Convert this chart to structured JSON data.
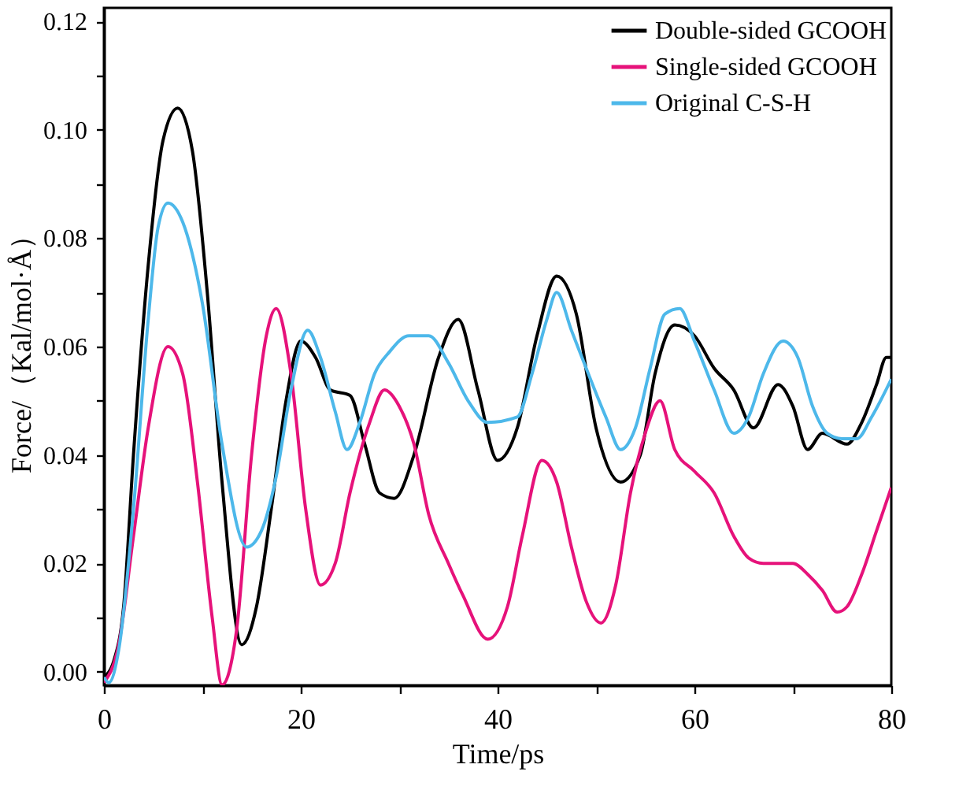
{
  "chart_data": {
    "type": "line",
    "xlabel": "Time/ps",
    "ylabel": "Force/（Kal/mol·Å）",
    "xlim": [
      0,
      80
    ],
    "xticks": [
      0,
      {
        "value": 10,
        "label": null
      },
      20,
      {
        "value": 30,
        "label": null
      },
      40,
      {
        "value": 50,
        "label": null
      },
      60,
      {
        "value": 70,
        "label": null
      },
      80
    ],
    "ylim": [
      -0.0025,
      0.1225
    ],
    "yticks": [
      {
        "value": 0,
        "label": "0.00"
      },
      {
        "value": 0.01,
        "label": null
      },
      {
        "value": 0.02,
        "label": "0.02"
      },
      {
        "value": 0.03,
        "label": null
      },
      {
        "value": 0.04,
        "label": "0.04"
      },
      {
        "value": 0.05,
        "label": null
      },
      {
        "value": 0.06,
        "label": "0.06"
      },
      {
        "value": 0.07,
        "label": null
      },
      {
        "value": 0.08,
        "label": "0.08"
      },
      {
        "value": 0.09,
        "label": null
      },
      {
        "value": 0.1,
        "label": "0.10"
      },
      {
        "value": 0.11,
        "label": null
      },
      {
        "value": 0.12,
        "label": "0.12"
      }
    ],
    "grid": false,
    "legend": "top right",
    "marker": "none",
    "line_style": "solid",
    "series": [
      {
        "name": "Double-sided GCOOH",
        "color": "#000000",
        "x": [
          0,
          1,
          2,
          3,
          4.5,
          6,
          7.5,
          9,
          10.5,
          12,
          14,
          15.5,
          17,
          18.5,
          20,
          21.5,
          23,
          25,
          26.5,
          28,
          29.5,
          31.5,
          34,
          36,
          38,
          40,
          42,
          44,
          46,
          48,
          50,
          52.5,
          54.5,
          56,
          58,
          60,
          62,
          64,
          66,
          68.5,
          70,
          71.5,
          73,
          75.5,
          77,
          78.5,
          79.5,
          80
        ],
        "values": [
          -0.001,
          0.002,
          0.012,
          0.04,
          0.075,
          0.098,
          0.104,
          0.096,
          0.07,
          0.035,
          0.005,
          0.012,
          0.03,
          0.05,
          0.061,
          0.058,
          0.052,
          0.051,
          0.042,
          0.033,
          0.032,
          0.04,
          0.058,
          0.065,
          0.052,
          0.039,
          0.045,
          0.062,
          0.073,
          0.066,
          0.045,
          0.035,
          0.04,
          0.055,
          0.064,
          0.062,
          0.056,
          0.052,
          0.045,
          0.053,
          0.049,
          0.041,
          0.044,
          0.042,
          0.046,
          0.053,
          0.058,
          0.058
        ]
      },
      {
        "name": "Single-sided GCOOH",
        "color": "#e6127a",
        "x": [
          0,
          1.5,
          3,
          4.5,
          6.5,
          8,
          9.5,
          11,
          12,
          13.5,
          15,
          16.5,
          17.5,
          19,
          20.5,
          22,
          23.5,
          25,
          27,
          28.5,
          30,
          31.5,
          33,
          35,
          36.5,
          39,
          41,
          42.5,
          44.5,
          46,
          47.5,
          49,
          50.5,
          52,
          53.5,
          55,
          56.5,
          58,
          60,
          62,
          64,
          65.5,
          67,
          68.5,
          70,
          71.5,
          73,
          74.5,
          75.5,
          77,
          78.5,
          80
        ],
        "values": [
          -0.002,
          0.005,
          0.025,
          0.045,
          0.06,
          0.055,
          0.035,
          0.01,
          -0.0024,
          0.008,
          0.04,
          0.062,
          0.067,
          0.055,
          0.03,
          0.016,
          0.02,
          0.033,
          0.046,
          0.052,
          0.049,
          0.042,
          0.029,
          0.02,
          0.014,
          0.006,
          0.012,
          0.025,
          0.039,
          0.035,
          0.023,
          0.013,
          0.009,
          0.016,
          0.033,
          0.044,
          0.05,
          0.041,
          0.037,
          0.033,
          0.025,
          0.021,
          0.02,
          0.02,
          0.02,
          0.018,
          0.015,
          0.011,
          0.012,
          0.018,
          0.026,
          0.034
        ]
      },
      {
        "name": "Original C-S-H",
        "color": "#4db8ea",
        "x": [
          0,
          0.5,
          1.5,
          3,
          4.5,
          5.5,
          6.5,
          8,
          10,
          12,
          14.5,
          16,
          17.5,
          19,
          20.7,
          22,
          23.5,
          24.7,
          26,
          27.5,
          29,
          31,
          33,
          35,
          37,
          39,
          42,
          43.5,
          45,
          46,
          47.5,
          49,
          51,
          52.5,
          54,
          55.5,
          57,
          58.5,
          60,
          62,
          64,
          65.5,
          67,
          69,
          70.5,
          72,
          73.5,
          75,
          76.5,
          78,
          80
        ],
        "values": [
          -0.001,
          -0.002,
          0.004,
          0.03,
          0.065,
          0.082,
          0.0865,
          0.083,
          0.068,
          0.042,
          0.023,
          0.026,
          0.036,
          0.052,
          0.063,
          0.058,
          0.048,
          0.041,
          0.046,
          0.055,
          0.059,
          0.062,
          0.062,
          0.057,
          0.05,
          0.046,
          0.047,
          0.055,
          0.065,
          0.07,
          0.063,
          0.056,
          0.047,
          0.041,
          0.045,
          0.056,
          0.066,
          0.067,
          0.061,
          0.052,
          0.044,
          0.047,
          0.055,
          0.061,
          0.058,
          0.049,
          0.044,
          0.043,
          0.043,
          0.047,
          0.054
        ]
      }
    ]
  }
}
